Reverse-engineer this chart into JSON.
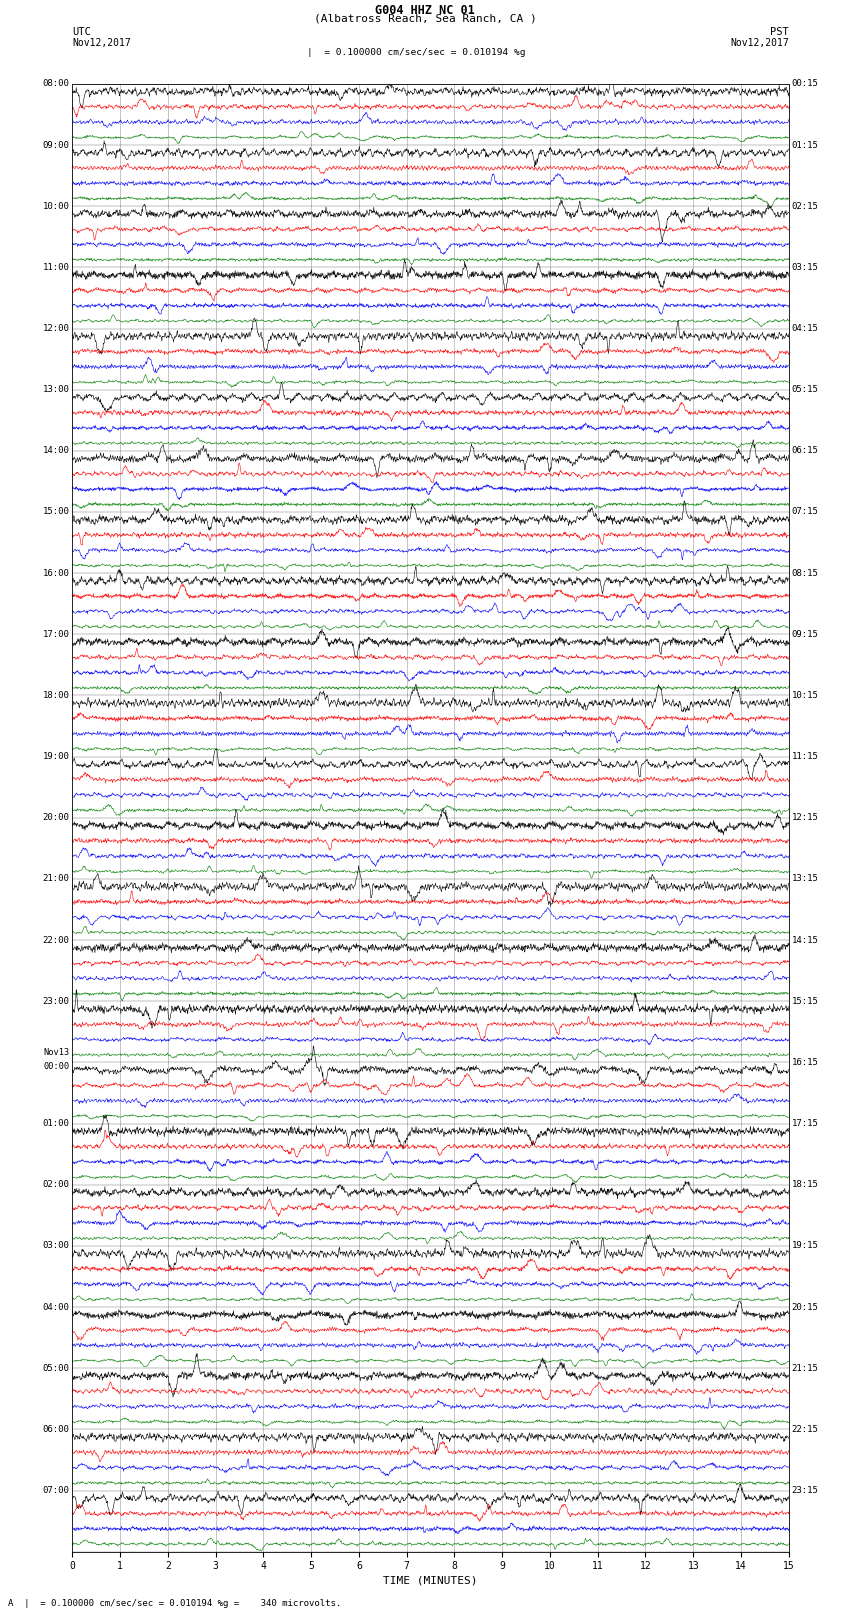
{
  "title_line1": "G004 HHZ NC 01",
  "title_line2": "(Albatross Reach, Sea Ranch, CA )",
  "scale_text": "= 0.100000 cm/sec/sec = 0.010194 %g",
  "footer_text": "A  |  = 0.100000 cm/sec/sec = 0.010194 %g =    340 microvolts.",
  "utc_label": "UTC",
  "pst_label": "PST",
  "date_left": "Nov12,2017",
  "date_right": "Nov12,2017",
  "xlabel": "TIME (MINUTES)",
  "xmin": 0,
  "xmax": 15,
  "num_hour_groups": 24,
  "traces_per_group": 4,
  "color_pattern": [
    "black",
    "red",
    "blue",
    "green"
  ],
  "amp_map": {
    "black": 0.38,
    "red": 0.22,
    "blue": 0.2,
    "green": 0.14
  },
  "background_color": "white",
  "grid_color": "#999999",
  "left_times_utc": [
    "08:00",
    "09:00",
    "10:00",
    "11:00",
    "12:00",
    "13:00",
    "14:00",
    "15:00",
    "16:00",
    "17:00",
    "18:00",
    "19:00",
    "20:00",
    "21:00",
    "22:00",
    "23:00",
    "Nov13\n00:00",
    "01:00",
    "02:00",
    "03:00",
    "04:00",
    "05:00",
    "06:00",
    "07:00"
  ],
  "right_times_pst": [
    "00:15",
    "01:15",
    "02:15",
    "03:15",
    "04:15",
    "05:15",
    "06:15",
    "07:15",
    "08:15",
    "09:15",
    "10:15",
    "11:15",
    "12:15",
    "13:15",
    "14:15",
    "15:15",
    "16:15",
    "17:15",
    "18:15",
    "19:15",
    "20:15",
    "21:15",
    "22:15",
    "23:15"
  ]
}
